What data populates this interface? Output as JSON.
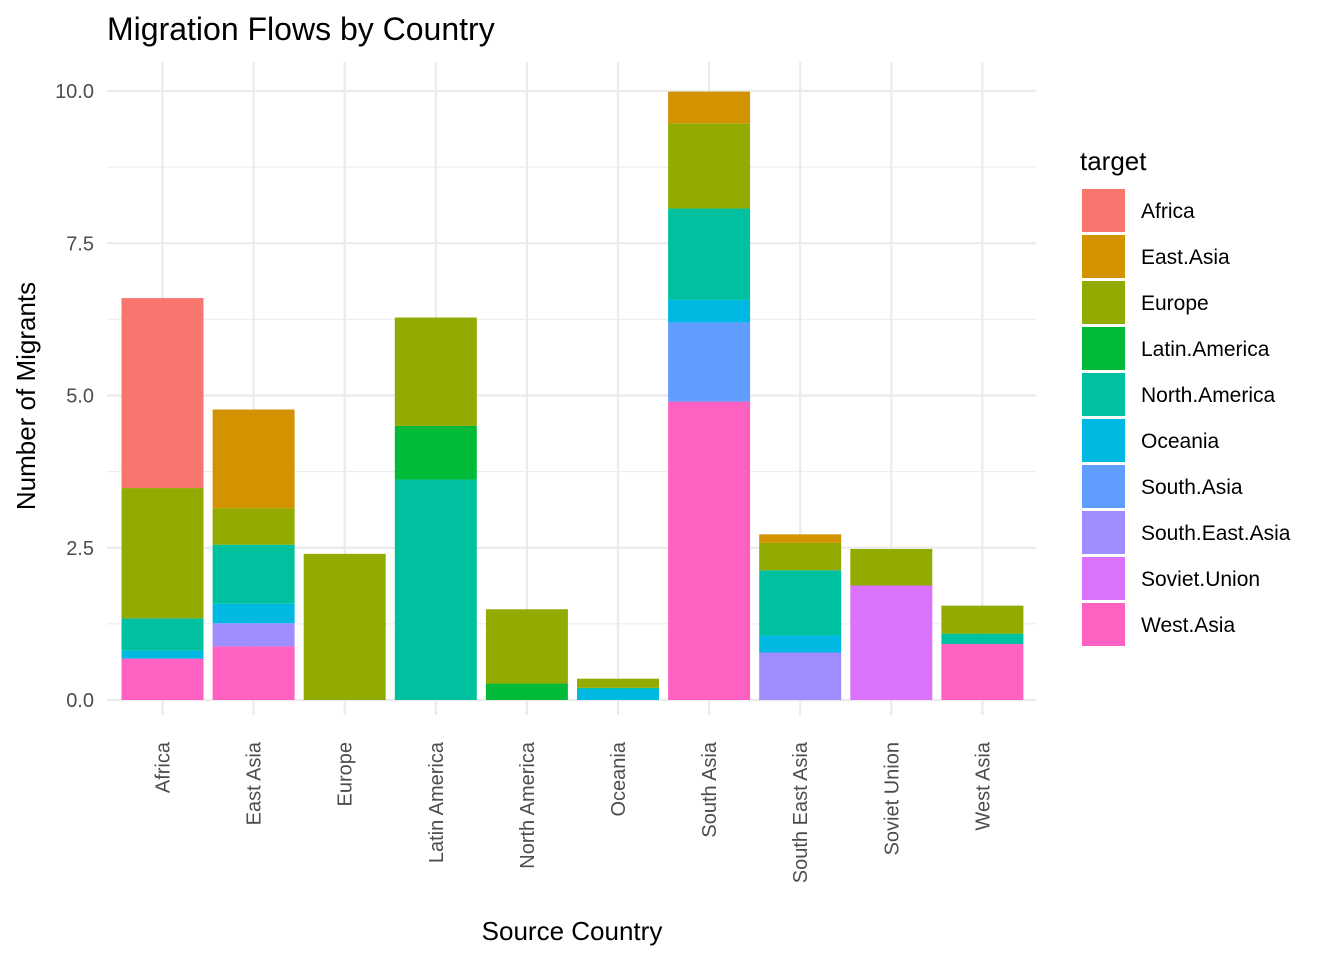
{
  "chart_data": {
    "type": "bar",
    "stacked": true,
    "title": "Migration Flows by Country",
    "xlabel": "Source Country",
    "ylabel": "Number of Migrants",
    "ylim": [
      0,
      10
    ],
    "yticks": [
      0.0,
      2.5,
      5.0,
      7.5,
      10.0
    ],
    "ytick_labels": [
      "0.0",
      "2.5",
      "5.0",
      "7.5",
      "10.0"
    ],
    "grid": true,
    "legend_title": "target",
    "legend_position": "right",
    "categories": [
      "Africa",
      "East Asia",
      "Europe",
      "Latin America",
      "North America",
      "Oceania",
      "South Asia",
      "South East Asia",
      "Soviet Union",
      "West Asia"
    ],
    "series": [
      {
        "name": "Africa",
        "color": "#F8766D",
        "values": [
          3.12,
          0,
          0,
          0,
          0,
          0,
          0,
          0,
          0,
          0
        ]
      },
      {
        "name": "East.Asia",
        "color": "#D39200",
        "values": [
          0,
          1.62,
          0,
          0,
          0,
          0,
          0.52,
          0.14,
          0,
          0
        ]
      },
      {
        "name": "Europe",
        "color": "#93AA00",
        "values": [
          2.14,
          0.6,
          2.4,
          1.78,
          1.22,
          0.15,
          1.4,
          0.45,
          0.6,
          0.46
        ]
      },
      {
        "name": "Latin.America",
        "color": "#00BA38",
        "values": [
          0,
          0,
          0,
          0.88,
          0.27,
          0,
          0,
          0,
          0,
          0
        ]
      },
      {
        "name": "North.America",
        "color": "#00C19F",
        "values": [
          0.53,
          0.97,
          0,
          3.62,
          0,
          0.02,
          1.5,
          1.07,
          0,
          0.17
        ]
      },
      {
        "name": "Oceania",
        "color": "#00B9E3",
        "values": [
          0.13,
          0.32,
          0,
          0,
          0,
          0.18,
          0.37,
          0.28,
          0,
          0
        ]
      },
      {
        "name": "South.Asia",
        "color": "#619CFF",
        "values": [
          0,
          0,
          0,
          0,
          0,
          0,
          1.3,
          0,
          0,
          0
        ]
      },
      {
        "name": "South.East.Asia",
        "color": "#9F8CFF",
        "values": [
          0,
          0.38,
          0,
          0,
          0,
          0,
          0,
          0.78,
          0,
          0
        ]
      },
      {
        "name": "Soviet.Union",
        "color": "#DB72FB",
        "values": [
          0,
          0,
          0,
          0,
          0,
          0,
          0,
          0,
          1.88,
          0
        ]
      },
      {
        "name": "West.Asia",
        "color": "#FF61C3",
        "values": [
          0.68,
          0.88,
          0,
          0,
          0,
          0,
          4.9,
          0,
          0,
          0.92
        ]
      }
    ]
  }
}
